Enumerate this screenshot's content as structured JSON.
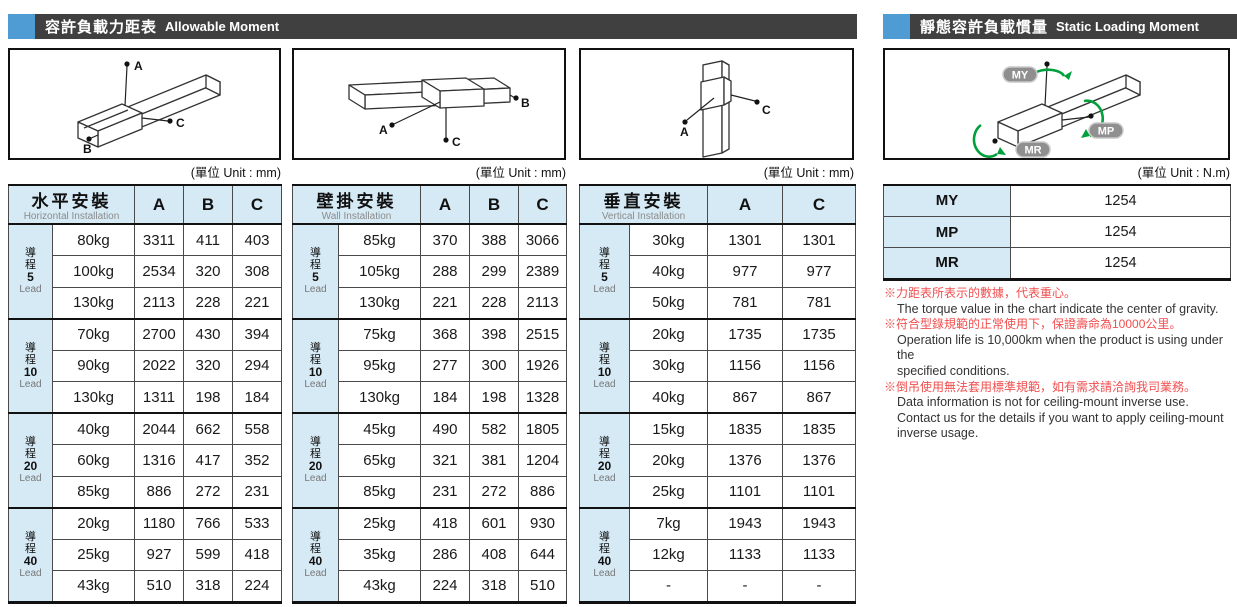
{
  "headers": {
    "left_zh": "容許負載力距表",
    "left_en": "Allowable Moment",
    "right_zh": "靜態容許負載慣量",
    "right_en": "Static Loading Moment"
  },
  "captions": {
    "unit_mm": "(單位 Unit : mm)",
    "unit_nm": "(單位 Unit : N.m)"
  },
  "diagram_labels": {
    "a": "A",
    "b": "B",
    "c": "C"
  },
  "moment_labels": {
    "my": "MY",
    "mp": "MP",
    "mr": "MR"
  },
  "tables": [
    {
      "title_zh": "水平安裝",
      "title_en": "Horizontal Installation",
      "columns": [
        "A",
        "B",
        "C"
      ],
      "groups": [
        {
          "lead_zh": "導程",
          "lead_num": "5",
          "lead_en": "Lead",
          "rows": [
            {
              "load": "80kg",
              "values": [
                "3311",
                "411",
                "403"
              ]
            },
            {
              "load": "100kg",
              "values": [
                "2534",
                "320",
                "308"
              ]
            },
            {
              "load": "130kg",
              "values": [
                "2113",
                "228",
                "221"
              ]
            }
          ]
        },
        {
          "lead_zh": "導程",
          "lead_num": "10",
          "lead_en": "Lead",
          "rows": [
            {
              "load": "70kg",
              "values": [
                "2700",
                "430",
                "394"
              ]
            },
            {
              "load": "90kg",
              "values": [
                "2022",
                "320",
                "294"
              ]
            },
            {
              "load": "130kg",
              "values": [
                "1311",
                "198",
                "184"
              ]
            }
          ]
        },
        {
          "lead_zh": "導程",
          "lead_num": "20",
          "lead_en": "Lead",
          "rows": [
            {
              "load": "40kg",
              "values": [
                "2044",
                "662",
                "558"
              ]
            },
            {
              "load": "60kg",
              "values": [
                "1316",
                "417",
                "352"
              ]
            },
            {
              "load": "85kg",
              "values": [
                "886",
                "272",
                "231"
              ]
            }
          ]
        },
        {
          "lead_zh": "導程",
          "lead_num": "40",
          "lead_en": "Lead",
          "rows": [
            {
              "load": "20kg",
              "values": [
                "1180",
                "766",
                "533"
              ]
            },
            {
              "load": "25kg",
              "values": [
                "927",
                "599",
                "418"
              ]
            },
            {
              "load": "43kg",
              "values": [
                "510",
                "318",
                "224"
              ]
            }
          ]
        }
      ]
    },
    {
      "title_zh": "壁掛安裝",
      "title_en": "Wall Installation",
      "columns": [
        "A",
        "B",
        "C"
      ],
      "groups": [
        {
          "lead_zh": "導程",
          "lead_num": "5",
          "lead_en": "Lead",
          "rows": [
            {
              "load": "85kg",
              "values": [
                "370",
                "388",
                "3066"
              ]
            },
            {
              "load": "105kg",
              "values": [
                "288",
                "299",
                "2389"
              ]
            },
            {
              "load": "130kg",
              "values": [
                "221",
                "228",
                "2113"
              ]
            }
          ]
        },
        {
          "lead_zh": "導程",
          "lead_num": "10",
          "lead_en": "Lead",
          "rows": [
            {
              "load": "75kg",
              "values": [
                "368",
                "398",
                "2515"
              ]
            },
            {
              "load": "95kg",
              "values": [
                "277",
                "300",
                "1926"
              ]
            },
            {
              "load": "130kg",
              "values": [
                "184",
                "198",
                "1328"
              ]
            }
          ]
        },
        {
          "lead_zh": "導程",
          "lead_num": "20",
          "lead_en": "Lead",
          "rows": [
            {
              "load": "45kg",
              "values": [
                "490",
                "582",
                "1805"
              ]
            },
            {
              "load": "65kg",
              "values": [
                "321",
                "381",
                "1204"
              ]
            },
            {
              "load": "85kg",
              "values": [
                "231",
                "272",
                "886"
              ]
            }
          ]
        },
        {
          "lead_zh": "導程",
          "lead_num": "40",
          "lead_en": "Lead",
          "rows": [
            {
              "load": "25kg",
              "values": [
                "418",
                "601",
                "930"
              ]
            },
            {
              "load": "35kg",
              "values": [
                "286",
                "408",
                "644"
              ]
            },
            {
              "load": "43kg",
              "values": [
                "224",
                "318",
                "510"
              ]
            }
          ]
        }
      ]
    },
    {
      "title_zh": "垂直安裝",
      "title_en": "Vertical Installation",
      "columns": [
        "A",
        "C"
      ],
      "groups": [
        {
          "lead_zh": "導程",
          "lead_num": "5",
          "lead_en": "Lead",
          "rows": [
            {
              "load": "30kg",
              "values": [
                "1301",
                "1301"
              ]
            },
            {
              "load": "40kg",
              "values": [
                "977",
                "977"
              ]
            },
            {
              "load": "50kg",
              "values": [
                "781",
                "781"
              ]
            }
          ]
        },
        {
          "lead_zh": "導程",
          "lead_num": "10",
          "lead_en": "Lead",
          "rows": [
            {
              "load": "20kg",
              "values": [
                "1735",
                "1735"
              ]
            },
            {
              "load": "30kg",
              "values": [
                "1156",
                "1156"
              ]
            },
            {
              "load": "40kg",
              "values": [
                "867",
                "867"
              ]
            }
          ]
        },
        {
          "lead_zh": "導程",
          "lead_num": "20",
          "lead_en": "Lead",
          "rows": [
            {
              "load": "15kg",
              "values": [
                "1835",
                "1835"
              ]
            },
            {
              "load": "20kg",
              "values": [
                "1376",
                "1376"
              ]
            },
            {
              "load": "25kg",
              "values": [
                "1101",
                "1101"
              ]
            }
          ]
        },
        {
          "lead_zh": "導程",
          "lead_num": "40",
          "lead_en": "Lead",
          "rows": [
            {
              "load": "7kg",
              "values": [
                "1943",
                "1943"
              ]
            },
            {
              "load": "12kg",
              "values": [
                "1133",
                "1133"
              ]
            },
            {
              "load": "-",
              "values": [
                "-",
                "-"
              ]
            }
          ]
        }
      ]
    }
  ],
  "static_table": {
    "rows": [
      {
        "label": "MY",
        "value": "1254"
      },
      {
        "label": "MP",
        "value": "1254"
      },
      {
        "label": "MR",
        "value": "1254"
      }
    ]
  },
  "notes": [
    {
      "zh": "※力距表所表示的數據，代表重心。",
      "en": [
        "The torque value in the chart indicate the center of gravity."
      ]
    },
    {
      "zh": "※符合型錄規範的正常使用下，保證壽命為10000公里。",
      "en": [
        "Operation life is 10,000km when the product is using under the",
        "specified conditions."
      ]
    },
    {
      "zh": "※倒吊使用無法套用標準規範，如有需求請洽詢我司業務。",
      "en": [
        "Data information is not for ceiling-mount inverse use.",
        "Contact us for the details if you want to apply ceiling-mount",
        "inverse usage."
      ]
    }
  ],
  "colors": {
    "accent_blue": "#4F9CD5",
    "bar_dark": "#404040",
    "cell_blue": "#D6EAF5",
    "note_red": "#F04E4E",
    "arrow_green": "#00A13C",
    "badge_gray": "#8F8F8F"
  }
}
